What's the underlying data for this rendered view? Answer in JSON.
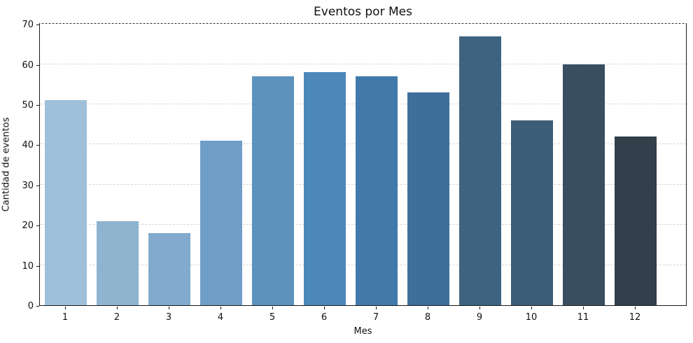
{
  "chart_data": {
    "type": "bar",
    "title": "Eventos por Mes",
    "xlabel": "Mes",
    "ylabel": "Cantidad de eventos",
    "categories": [
      "1",
      "2",
      "3",
      "4",
      "5",
      "6",
      "7",
      "8",
      "9",
      "10",
      "11",
      "12"
    ],
    "values": [
      51,
      21,
      18,
      41,
      57,
      58,
      57,
      53,
      67,
      46,
      60,
      42
    ],
    "bar_colors": [
      "#9fc0da",
      "#8fb4d0",
      "#81aacc",
      "#6f9ec6",
      "#5d92bd",
      "#4c87b9",
      "#4179ab",
      "#3d6f9a",
      "#3d6380",
      "#3b5d77",
      "#394e60",
      "#333f4b"
    ],
    "yticks": [
      0,
      10,
      20,
      30,
      40,
      50,
      60,
      70
    ],
    "ylim": [
      0,
      70.4
    ],
    "grid": "horizontal-dashed",
    "legend": "none",
    "background_color": "#ffffff",
    "spine_color": "#1a1a1a"
  }
}
